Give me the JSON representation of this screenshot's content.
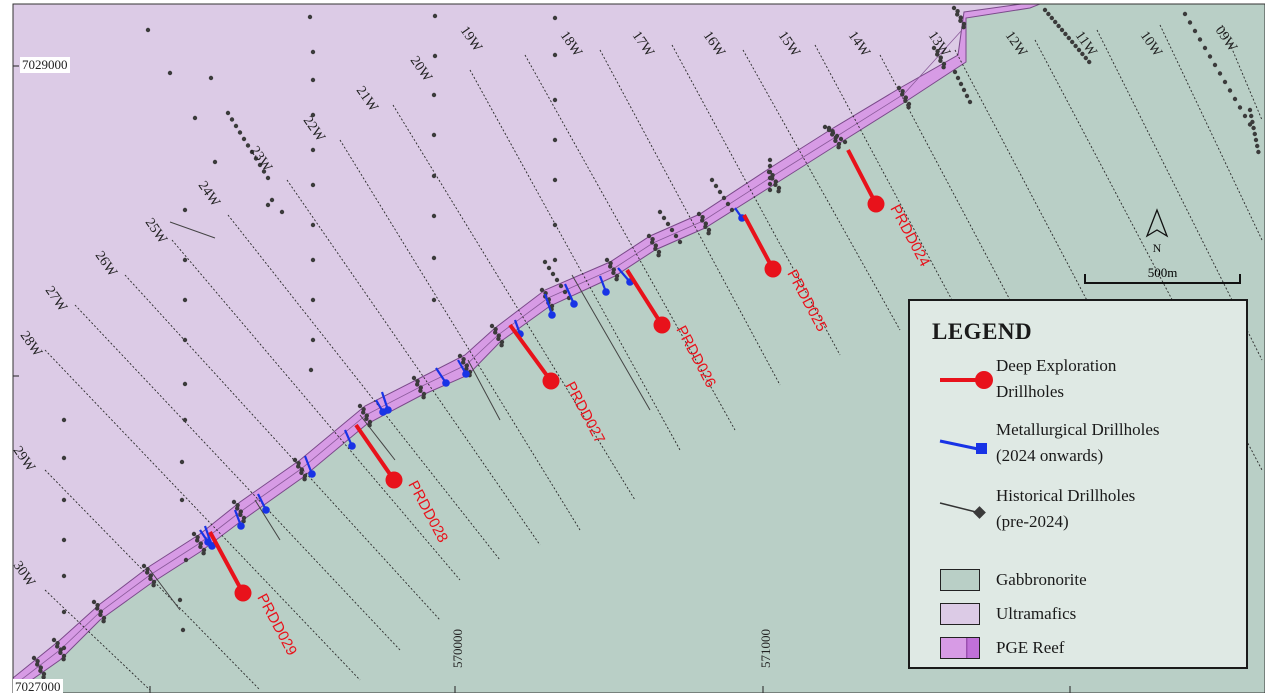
{
  "map": {
    "y_coords": [
      "7029000",
      "7027000"
    ],
    "x_coords": [
      "570000",
      "571000"
    ],
    "section_lines": [
      "09W",
      "10W",
      "11W",
      "12W",
      "13W",
      "14W",
      "15W",
      "16W",
      "17W",
      "18W",
      "19W",
      "20W",
      "21W",
      "22W",
      "23W",
      "24W",
      "25W",
      "26W",
      "27W",
      "28W",
      "29W",
      "30W"
    ],
    "deep_holes": [
      "PRDD024",
      "PRDD025",
      "PRDD026",
      "PRDD027",
      "PRDD028",
      "PRDD029"
    ],
    "north_label": "N",
    "scale_label": "500m"
  },
  "legend": {
    "title": "LEGEND",
    "deep_line1": "Deep Exploration",
    "deep_line2": "Drillholes",
    "met_line1": "Metallurgical Drillholes",
    "met_line2": "(2024 onwards)",
    "hist_line1": "Historical Drillholes",
    "hist_line2": "(pre-2024)",
    "gabbro": "Gabbronorite",
    "ultra": "Ultramafics",
    "reef": "PGE Reef"
  },
  "colors": {
    "gabbronorite": "#b9cfc6",
    "ultramafics": "#dccbe6",
    "pge_reef": "#d79be5",
    "deep_hole": "#e8121b",
    "met_hole": "#1833e6",
    "historic": "#3a3a3a"
  }
}
